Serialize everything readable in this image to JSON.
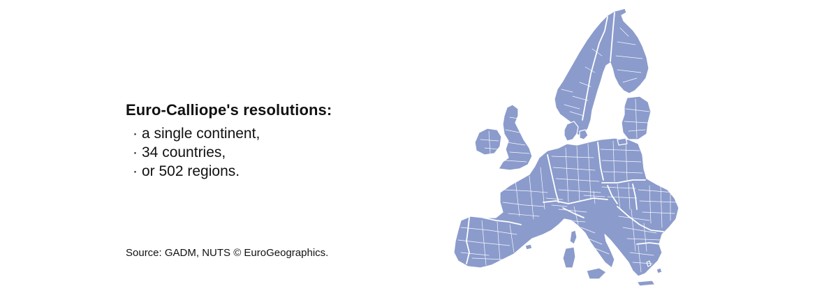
{
  "heading": "Euro-Calliope's resolutions:",
  "bullet_glyph": "·",
  "resolutions": [
    "a single continent,",
    "34 countries,",
    "or 502 regions."
  ],
  "source": "Source: GADM, NUTS © EuroGeographics.",
  "map": {
    "land_color": "#8b9bcc",
    "border_color": "#ffffff"
  }
}
